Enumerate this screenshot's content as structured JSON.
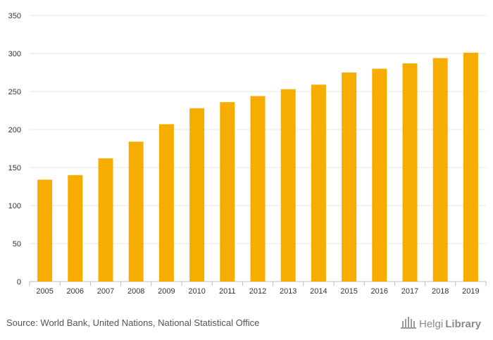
{
  "chart_data": {
    "type": "bar",
    "categories": [
      "2005",
      "2006",
      "2007",
      "2008",
      "2009",
      "2010",
      "2011",
      "2012",
      "2013",
      "2014",
      "2015",
      "2016",
      "2017",
      "2018",
      "2019"
    ],
    "values": [
      134,
      140,
      162,
      184,
      207,
      228,
      236,
      244,
      253,
      259,
      275,
      280,
      287,
      294,
      301
    ],
    "ylim": [
      0,
      350
    ],
    "yticks": [
      0,
      50,
      100,
      150,
      200,
      250,
      300,
      350
    ],
    "title": "",
    "xlabel": "",
    "ylabel": "",
    "grid": true,
    "legend": "none",
    "bar_color": "#f7ad00"
  },
  "footer": {
    "source": "Source: World Bank, United Nations, National Statistical Office",
    "brand_prefix": "Helgi",
    "brand_suffix": "Library"
  },
  "colors": {
    "bar": "#f7ad00",
    "grid": "#e6e6e6",
    "text": "#555555"
  }
}
